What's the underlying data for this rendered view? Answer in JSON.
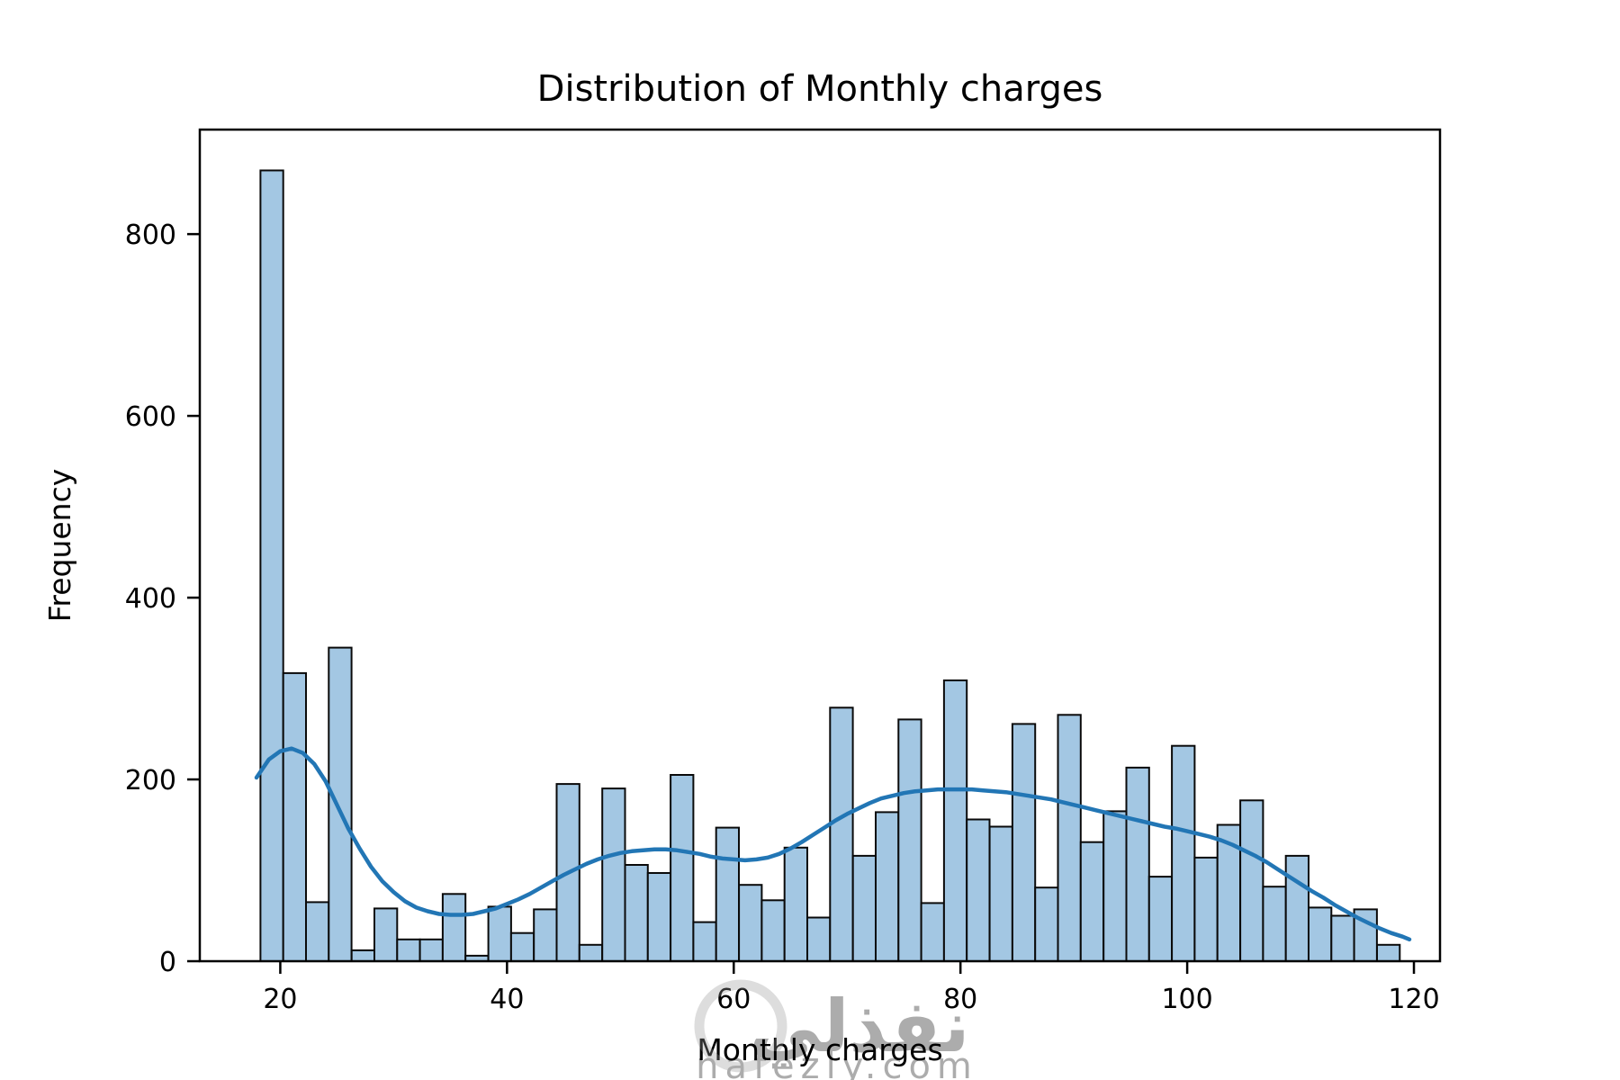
{
  "title": "Distribution of Monthly charges",
  "xlabel": "Monthly charges",
  "ylabel": "Frequency",
  "watermark": {
    "arabic": "نفذلي",
    "latin": "nafezly.com"
  },
  "colors": {
    "bar_fill": "#a3c7e3",
    "bar_edge": "#0a0a0a",
    "kde_line": "#2276b5",
    "axis": "#000000",
    "watermark": "#999999"
  },
  "chart_data": {
    "type": "histogram+kde",
    "title": "Distribution of Monthly charges",
    "xlabel": "Monthly charges",
    "ylabel": "Frequency",
    "bin_start": 18.25,
    "bin_width": 2.01,
    "bin_count": 50,
    "values": [
      870,
      317,
      65,
      345,
      12,
      58,
      24,
      24,
      74,
      6,
      60,
      31,
      57,
      195,
      18,
      190,
      106,
      97,
      205,
      43,
      147,
      84,
      67,
      125,
      48,
      279,
      116,
      164,
      266,
      64,
      309,
      156,
      148,
      261,
      81,
      271,
      131,
      165,
      213,
      93,
      237,
      114,
      150,
      177,
      82,
      116,
      59,
      50,
      57,
      18
    ],
    "xticks": [
      20,
      40,
      60,
      80,
      100,
      120
    ],
    "yticks": [
      0,
      200,
      400,
      600,
      800
    ],
    "xlim": [
      12.9,
      122.3
    ],
    "ylim": [
      0,
      915
    ],
    "grid": false,
    "legend": "none",
    "kde_points": [
      [
        17.9,
        202
      ],
      [
        19,
        222
      ],
      [
        20,
        231
      ],
      [
        21,
        234
      ],
      [
        22,
        229
      ],
      [
        23,
        217
      ],
      [
        24,
        198
      ],
      [
        25,
        172
      ],
      [
        26,
        146
      ],
      [
        27,
        124
      ],
      [
        28,
        104
      ],
      [
        29,
        88
      ],
      [
        30,
        76
      ],
      [
        31,
        66
      ],
      [
        32,
        59
      ],
      [
        33,
        55
      ],
      [
        34,
        52
      ],
      [
        35,
        51
      ],
      [
        36,
        51
      ],
      [
        37,
        52
      ],
      [
        38,
        55
      ],
      [
        39,
        58
      ],
      [
        40,
        63
      ],
      [
        41,
        68
      ],
      [
        42,
        74
      ],
      [
        43,
        81
      ],
      [
        44,
        88
      ],
      [
        45,
        95
      ],
      [
        46,
        101
      ],
      [
        47,
        107
      ],
      [
        48,
        112
      ],
      [
        49,
        116
      ],
      [
        50,
        119
      ],
      [
        51,
        121
      ],
      [
        52,
        122
      ],
      [
        53,
        123
      ],
      [
        54,
        123
      ],
      [
        55,
        122
      ],
      [
        56,
        120
      ],
      [
        57,
        118
      ],
      [
        58,
        115
      ],
      [
        59,
        113
      ],
      [
        60,
        112
      ],
      [
        61,
        111
      ],
      [
        62,
        112
      ],
      [
        63,
        114
      ],
      [
        64,
        118
      ],
      [
        65,
        124
      ],
      [
        66,
        131
      ],
      [
        67,
        139
      ],
      [
        68,
        147
      ],
      [
        69,
        155
      ],
      [
        70,
        162
      ],
      [
        71,
        168
      ],
      [
        72,
        174
      ],
      [
        73,
        179
      ],
      [
        74,
        182
      ],
      [
        75,
        185
      ],
      [
        76,
        187
      ],
      [
        77,
        188
      ],
      [
        78,
        189
      ],
      [
        79,
        189
      ],
      [
        80,
        189
      ],
      [
        81,
        189
      ],
      [
        82,
        188
      ],
      [
        83,
        187
      ],
      [
        84,
        186
      ],
      [
        85,
        184
      ],
      [
        86,
        182
      ],
      [
        87,
        180
      ],
      [
        88,
        178
      ],
      [
        89,
        175
      ],
      [
        90,
        172
      ],
      [
        91,
        169
      ],
      [
        92,
        166
      ],
      [
        93,
        163
      ],
      [
        94,
        160
      ],
      [
        95,
        157
      ],
      [
        96,
        154
      ],
      [
        97,
        151
      ],
      [
        98,
        148
      ],
      [
        99,
        146
      ],
      [
        100,
        143
      ],
      [
        101,
        140
      ],
      [
        102,
        137
      ],
      [
        103,
        133
      ],
      [
        104,
        128
      ],
      [
        105,
        122
      ],
      [
        106,
        116
      ],
      [
        107,
        109
      ],
      [
        108,
        101
      ],
      [
        109,
        93
      ],
      [
        110,
        85
      ],
      [
        111,
        77
      ],
      [
        112,
        70
      ],
      [
        113,
        62
      ],
      [
        114,
        55
      ],
      [
        115,
        48
      ],
      [
        116,
        42
      ],
      [
        117,
        36
      ],
      [
        118,
        31
      ],
      [
        119,
        27
      ],
      [
        119.6,
        24
      ]
    ]
  }
}
